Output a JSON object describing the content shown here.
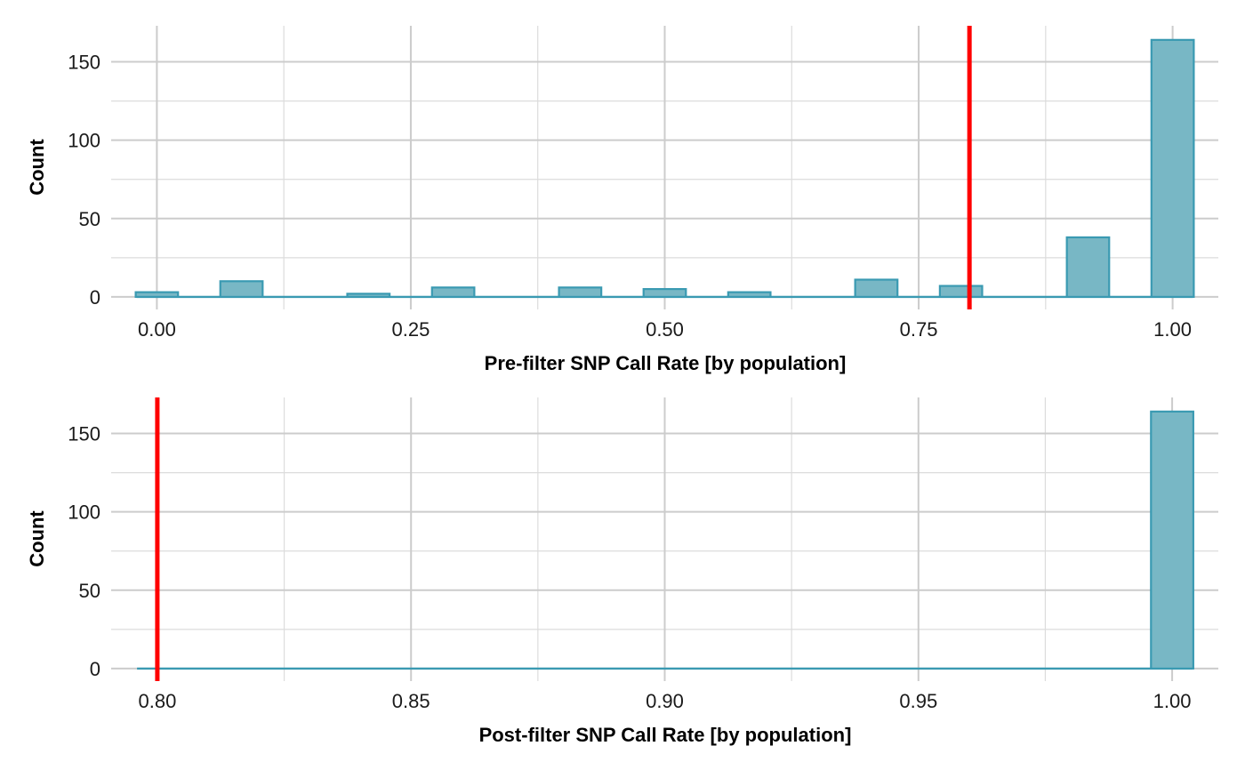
{
  "chart_data": [
    {
      "type": "bar",
      "xlabel": "Pre-filter SNP Call Rate [by population]",
      "ylabel": "Count",
      "xlim": [
        -0.045,
        1.045
      ],
      "ylim": [
        -8,
        173
      ],
      "x_ticks": [
        0.0,
        0.25,
        0.5,
        0.75,
        1.0
      ],
      "x_tick_labels": [
        "0.00",
        "0.25",
        "0.50",
        "0.75",
        "1.00"
      ],
      "y_ticks": [
        0,
        50,
        100,
        150
      ],
      "y_tick_labels": [
        "0",
        "50",
        "100",
        "150"
      ],
      "bin_width": 0.04167,
      "bins": [
        {
          "x": 0.0,
          "count": 3
        },
        {
          "x": 0.0833,
          "count": 10
        },
        {
          "x": 0.2083,
          "count": 2
        },
        {
          "x": 0.2917,
          "count": 6
        },
        {
          "x": 0.4167,
          "count": 6
        },
        {
          "x": 0.5,
          "count": 5
        },
        {
          "x": 0.5833,
          "count": 3
        },
        {
          "x": 0.7083,
          "count": 11
        },
        {
          "x": 0.7917,
          "count": 7
        },
        {
          "x": 0.9167,
          "count": 38
        },
        {
          "x": 1.0,
          "count": 164
        }
      ],
      "baseline_range": [
        -0.02,
        1.02
      ],
      "cutoff": 0.8,
      "grid": true,
      "colors": {
        "bar_fill": "#78b7c5",
        "bar_stroke": "#3a9ab2",
        "cutoff": "#ff0000",
        "grid": "#cccccc"
      }
    },
    {
      "type": "bar",
      "xlabel": "Post-filter SNP Call Rate [by population]",
      "ylabel": "Count",
      "xlim": [
        0.7909,
        1.0091
      ],
      "ylim": [
        -8,
        173
      ],
      "x_ticks": [
        0.8,
        0.85,
        0.9,
        0.95,
        1.0
      ],
      "x_tick_labels": [
        "0.80",
        "0.85",
        "0.90",
        "0.95",
        "1.00"
      ],
      "y_ticks": [
        0,
        50,
        100,
        150
      ],
      "y_tick_labels": [
        "0",
        "50",
        "100",
        "150"
      ],
      "bin_width": 0.00834,
      "bins": [
        {
          "x": 1.0,
          "count": 164
        }
      ],
      "baseline_range": [
        0.796,
        1.004
      ],
      "cutoff": 0.8,
      "grid": true,
      "colors": {
        "bar_fill": "#78b7c5",
        "bar_stroke": "#3a9ab2",
        "cutoff": "#ff0000",
        "grid": "#cccccc"
      }
    }
  ]
}
